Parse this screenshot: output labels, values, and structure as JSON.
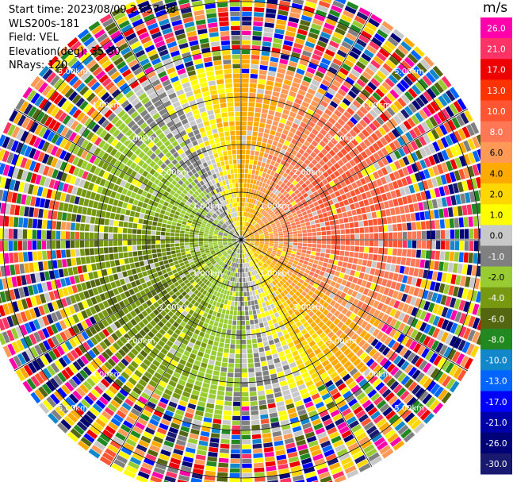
{
  "info": {
    "start_time": "Start time: 2023/08/09 23:57:58",
    "instrument": "WLS200s-181",
    "field": "Field: VEL",
    "elevation": "Elevation(deg): 35.30",
    "nrays": "NRays: 120"
  },
  "chart_data": {
    "type": "heatmap",
    "projection": "polar-ppi",
    "field": "VEL",
    "units": "m/s",
    "nrays": 120,
    "range_rings_km": [
      1.0,
      2.0,
      3.0,
      4.0,
      5.0
    ],
    "range_ring_labels": [
      "1.00km",
      "2.00km",
      "3.00km",
      "4.00km",
      "5.00km"
    ],
    "max_range_km": 5.5,
    "spoke_angles_deg": [
      0,
      30,
      60,
      90,
      120,
      150,
      180,
      210,
      240,
      270,
      300,
      330
    ],
    "colorbar": {
      "ticks": [
        "26.0",
        "21.0",
        "17.0",
        "13.0",
        "10.0",
        "8.0",
        "6.0",
        "4.0",
        "2.0",
        "1.0",
        "0.0",
        "-1.0",
        "-2.0",
        "-4.0",
        "-6.0",
        "-8.0",
        "-10.0",
        "-13.0",
        "-17.0",
        "-21.0",
        "-26.0",
        "-30.0"
      ],
      "colors": [
        "#ff00aa",
        "#ff3366",
        "#ee0000",
        "#ff3300",
        "#ff5533",
        "#ff7755",
        "#ff9955",
        "#ffaa00",
        "#ffd700",
        "#ffff00",
        "#c8c8c8",
        "#808080",
        "#99cc33",
        "#779911",
        "#556611",
        "#228822",
        "#1188cc",
        "#0066ff",
        "#0000ff",
        "#0000aa",
        "#000077",
        "#191970"
      ]
    },
    "velocity_pattern": {
      "approaching_sector_deg": [
        200,
        300
      ],
      "receding_sector_deg": [
        20,
        120
      ],
      "peak_receding_ms": 8.0,
      "peak_approaching_ms": -6.0,
      "noise_beyond_km": 3.6
    }
  }
}
